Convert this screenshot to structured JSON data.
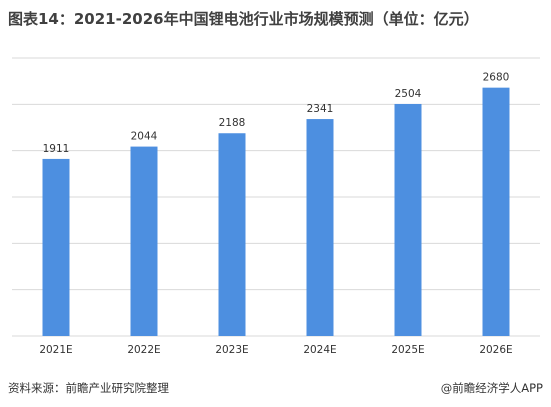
{
  "title": "图表14：2021-2026年中国锂电池行业市场规模预测（单位：亿元）",
  "source": "资料来源：前瞻产业研究院整理",
  "brand": "@前瞻经济学人APP",
  "colors": {
    "bar": "#4d8fe0",
    "grid": "#d9d9d9"
  },
  "chart_data": {
    "type": "bar",
    "categories": [
      "2021E",
      "2022E",
      "2023E",
      "2024E",
      "2025E",
      "2026E"
    ],
    "values": [
      1911,
      2044,
      2188,
      2341,
      2504,
      2680
    ],
    "ylim": [
      0,
      3000
    ],
    "grid": true,
    "data_labels": true
  }
}
